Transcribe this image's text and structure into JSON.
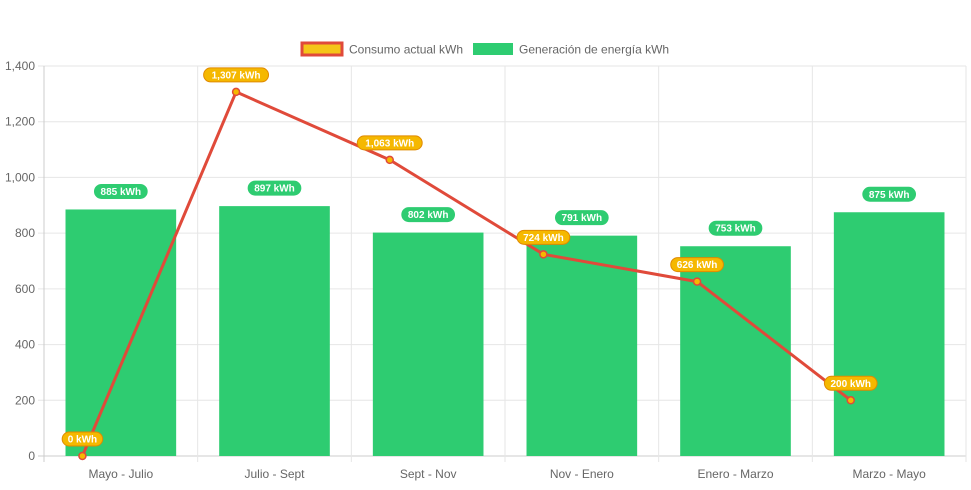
{
  "chart_data": {
    "type": "bar",
    "categories": [
      "Mayo - Julio",
      "Julio - Sept",
      "Sept - Nov",
      "Nov - Enero",
      "Enero - Marzo",
      "Marzo - Mayo"
    ],
    "series": [
      {
        "name": "Consumo actual kWh",
        "type": "line",
        "values": [
          0,
          1307,
          1063,
          724,
          626,
          200
        ],
        "data_labels": [
          "0 kWh",
          "1,307 kWh",
          "1,063 kWh",
          "724 kWh",
          "626 kWh",
          "200 kWh"
        ],
        "line_color": "#e04a3a",
        "point_color": "#f5b800",
        "label_bg": "#f5b800",
        "label_border": "#e08a00"
      },
      {
        "name": "Generación de energía kWh",
        "type": "bar",
        "values": [
          885,
          897,
          802,
          791,
          753,
          875
        ],
        "data_labels": [
          "885 kWh",
          "897 kWh",
          "802 kWh",
          "791 kWh",
          "753 kWh",
          "875 kWh"
        ],
        "bar_color": "#2ecc71",
        "label_bg": "#2ecc71"
      }
    ],
    "title": "",
    "xlabel": "",
    "ylabel": "",
    "ylim": [
      0,
      1400
    ],
    "yticks": [
      0,
      200,
      400,
      600,
      800,
      1000,
      1200,
      1400
    ],
    "ytick_labels": [
      "0",
      "200",
      "400",
      "600",
      "800",
      "1,000",
      "1,200",
      "1,400"
    ],
    "grid": true,
    "legend_position": "top-center",
    "grid_color": "#e6e6e6",
    "axis_text_color": "#666666"
  }
}
